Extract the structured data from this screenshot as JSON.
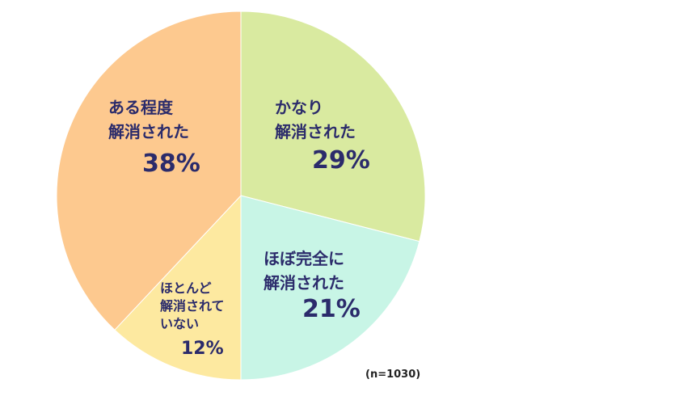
{
  "chart_data": {
    "type": "pie",
    "start_angle_deg": 0,
    "direction": "clockwise",
    "slices": [
      {
        "label_lines": [
          "かなり",
          "解消された"
        ],
        "value": 29,
        "value_label": "29%",
        "color": "#d9eaa0"
      },
      {
        "label_lines": [
          "ほぼ完全に",
          "解消された"
        ],
        "value": 21,
        "value_label": "21%",
        "color": "#c8f5e6"
      },
      {
        "label_lines": [
          "ほとんど",
          "解消されて",
          "いない"
        ],
        "value": 12,
        "value_label": "12%",
        "color": "#fde9a0"
      },
      {
        "label_lines": [
          "ある程度",
          "解消された"
        ],
        "value": 38,
        "value_label": "38%",
        "color": "#fdc98f"
      }
    ],
    "note": "(n=1030)"
  }
}
